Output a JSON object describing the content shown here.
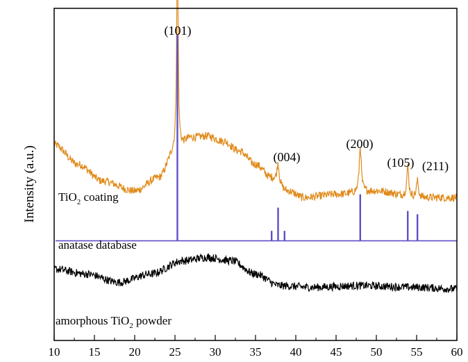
{
  "chart_data": {
    "type": "line",
    "title": "",
    "xlabel": "",
    "ylabel": "Intensity (a.u.)",
    "xlim": [
      10,
      60
    ],
    "x_ticks": [
      "10",
      "15",
      "20",
      "25",
      "30",
      "35",
      "40",
      "45",
      "50",
      "55",
      "60"
    ],
    "y_ticks": "none",
    "grid": false,
    "legend": "none",
    "series": [
      {
        "name": "TiO2 coating",
        "label_main": "TiO",
        "label_sub": "2",
        "label_rest": " coating",
        "color": "#e08a1a",
        "kind": "xrd-pattern",
        "baseline_points": [
          [
            10,
            0.59
          ],
          [
            13,
            0.53
          ],
          [
            16,
            0.48
          ],
          [
            20,
            0.45
          ],
          [
            23,
            0.49
          ],
          [
            25,
            0.57
          ],
          [
            27,
            0.61
          ],
          [
            29,
            0.615
          ],
          [
            31,
            0.6
          ],
          [
            33,
            0.57
          ],
          [
            35,
            0.53
          ],
          [
            37,
            0.49
          ],
          [
            39,
            0.45
          ],
          [
            41,
            0.43
          ],
          [
            45,
            0.44
          ],
          [
            50,
            0.45
          ],
          [
            55,
            0.43
          ],
          [
            60,
            0.43
          ]
        ],
        "peaks": [
          {
            "x": 25.3,
            "height": 0.62,
            "width": 0.22
          },
          {
            "x": 37.8,
            "height": 0.06,
            "width": 0.3
          },
          {
            "x": 48.0,
            "height": 0.14,
            "width": 0.3
          },
          {
            "x": 53.9,
            "height": 0.09,
            "width": 0.3
          },
          {
            "x": 55.1,
            "height": 0.05,
            "width": 0.3
          }
        ],
        "noise": 0.012
      },
      {
        "name": "anatase database",
        "color": "#5b4fc8",
        "kind": "stick",
        "baseline": 0.3,
        "sticks": [
          {
            "x": 25.3,
            "height": 0.62
          },
          {
            "x": 37.0,
            "height": 0.03
          },
          {
            "x": 37.8,
            "height": 0.1
          },
          {
            "x": 38.6,
            "height": 0.03
          },
          {
            "x": 48.0,
            "height": 0.14
          },
          {
            "x": 53.9,
            "height": 0.09
          },
          {
            "x": 55.1,
            "height": 0.08
          }
        ]
      },
      {
        "name": "amorphous TiO2 powder",
        "label_main": "amorphous TiO",
        "label_sub": "2",
        "label_rest": " powder",
        "color": "#000000",
        "kind": "xrd-pattern",
        "baseline_points": [
          [
            10,
            0.215
          ],
          [
            14,
            0.2
          ],
          [
            18,
            0.175
          ],
          [
            22,
            0.2
          ],
          [
            26,
            0.24
          ],
          [
            29,
            0.25
          ],
          [
            32,
            0.24
          ],
          [
            35,
            0.2
          ],
          [
            38,
            0.165
          ],
          [
            42,
            0.16
          ],
          [
            48,
            0.165
          ],
          [
            55,
            0.16
          ],
          [
            60,
            0.155
          ]
        ],
        "peaks": [],
        "noise": 0.012
      }
    ],
    "annotations": [
      "(101)",
      "(004)",
      "(200)",
      "(105)",
      "(211)"
    ]
  }
}
